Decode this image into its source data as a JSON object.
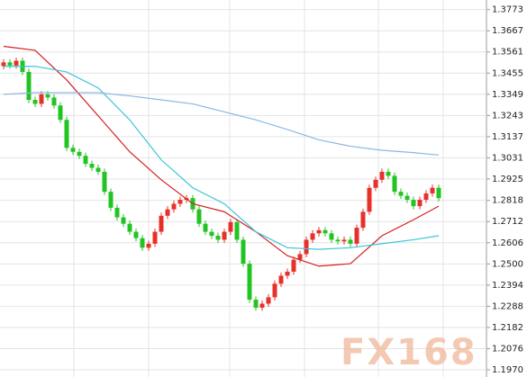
{
  "chart_data": {
    "type": "candlestick",
    "watermark": "FX168",
    "ylim": [
      1.1934,
      1.3821
    ],
    "yticks": [
      1.3773,
      1.3667,
      1.3561,
      1.3455,
      1.3349,
      1.3243,
      1.3137,
      1.3031,
      1.2925,
      1.2818,
      1.2712,
      1.2606,
      {
        "value": 1.25,
        "label": "1.2500"
      },
      1.2394,
      1.2288,
      1.2182,
      1.2076,
      {
        "value": 1.197,
        "label": "1.1970"
      }
    ],
    "grid": true,
    "up_color": "#e8302a",
    "down_color": "#22c422",
    "open": [
      1.349,
      1.3509,
      1.3493,
      1.3517,
      1.3461,
      1.3321,
      1.3301,
      1.3349,
      1.3333,
      1.3293,
      1.3221,
      1.3081,
      1.3061,
      1.3041,
      1.3001,
      1.2981,
      1.2961,
      1.2861,
      1.2781,
      1.2733,
      1.2701,
      1.2661,
      1.2629,
      1.2581,
      1.2601,
      1.2661,
      1.2741,
      1.2773,
      1.2801,
      1.2821,
      1.2829,
      1.2773,
      1.2701,
      1.2661,
      1.2641,
      1.2621,
      1.2661,
      1.2709,
      1.2621,
      1.2501,
      1.2321,
      1.2281,
      1.2301,
      1.2333,
      1.2401,
      1.2441,
      1.2461,
      1.2521,
      1.2549,
      1.2621,
      1.2653,
      1.2669,
      1.2653,
      1.2621,
      1.2613,
      1.2621,
      1.2601,
      1.2681,
      1.2761,
      1.2881,
      1.2921,
      1.2961,
      1.2941,
      1.2861,
      1.2841,
      1.2821,
      1.2789,
      1.2821,
      1.2853,
      1.2881
    ],
    "high": [
      1.3525,
      1.3525,
      1.3533,
      1.3533,
      1.3477,
      1.3337,
      1.3365,
      1.3365,
      1.3349,
      1.3309,
      1.3237,
      1.3097,
      1.3077,
      1.3057,
      1.3017,
      1.2997,
      1.2977,
      1.2877,
      1.2797,
      1.2749,
      1.2717,
      1.2677,
      1.2645,
      1.2617,
      1.2677,
      1.2757,
      1.2789,
      1.2817,
      1.2837,
      1.2845,
      1.2845,
      1.2789,
      1.2717,
      1.2677,
      1.2657,
      1.2677,
      1.2725,
      1.2725,
      1.2637,
      1.2517,
      1.2337,
      1.2317,
      1.2349,
      1.2417,
      1.2457,
      1.2477,
      1.2537,
      1.2565,
      1.2637,
      1.2669,
      1.2685,
      1.2685,
      1.2669,
      1.2637,
      1.2637,
      1.2637,
      1.2697,
      1.2777,
      1.2897,
      1.2937,
      1.2977,
      1.2977,
      1.2957,
      1.2877,
      1.2857,
      1.2837,
      1.2837,
      1.2869,
      1.2897,
      1.2897
    ],
    "low": [
      1.3474,
      1.3477,
      1.3477,
      1.3445,
      1.3305,
      1.3285,
      1.3285,
      1.3317,
      1.3277,
      1.3205,
      1.3065,
      1.3045,
      1.3025,
      1.2985,
      1.2965,
      1.2945,
      1.2845,
      1.2765,
      1.2717,
      1.2685,
      1.2645,
      1.2613,
      1.2565,
      1.2565,
      1.2585,
      1.2645,
      1.2725,
      1.2757,
      1.2785,
      1.2805,
      1.2757,
      1.2685,
      1.2645,
      1.2625,
      1.2605,
      1.2605,
      1.2645,
      1.2605,
      1.2485,
      1.2305,
      1.2265,
      1.2265,
      1.2285,
      1.2317,
      1.2385,
      1.2425,
      1.2445,
      1.2505,
      1.2533,
      1.2605,
      1.2637,
      1.2637,
      1.2605,
      1.2597,
      1.2597,
      1.2585,
      1.2585,
      1.2665,
      1.2745,
      1.2865,
      1.2905,
      1.2925,
      1.2845,
      1.2825,
      1.2805,
      1.2773,
      1.2773,
      1.2805,
      1.2837,
      1.2813
    ],
    "close": [
      1.3509,
      1.3493,
      1.3517,
      1.3461,
      1.3321,
      1.3301,
      1.3349,
      1.3333,
      1.3293,
      1.3221,
      1.3081,
      1.3061,
      1.3041,
      1.3001,
      1.2981,
      1.2961,
      1.2861,
      1.2781,
      1.2733,
      1.2701,
      1.2661,
      1.2629,
      1.2581,
      1.2601,
      1.2661,
      1.2741,
      1.2773,
      1.2801,
      1.2821,
      1.2829,
      1.2773,
      1.2701,
      1.2661,
      1.2641,
      1.2621,
      1.2661,
      1.2709,
      1.2621,
      1.2501,
      1.2321,
      1.2281,
      1.2301,
      1.2333,
      1.2401,
      1.2441,
      1.2461,
      1.2521,
      1.2549,
      1.2621,
      1.2653,
      1.2669,
      1.2653,
      1.2621,
      1.2613,
      1.2621,
      1.2601,
      1.2681,
      1.2761,
      1.2881,
      1.2921,
      1.2961,
      1.2941,
      1.2861,
      1.2841,
      1.2821,
      1.2789,
      1.2821,
      1.2853,
      1.2881,
      1.2829
    ],
    "series": [
      {
        "color": "#d42020",
        "x": [
          0,
          5,
          10,
          15,
          20,
          25,
          30,
          35,
          40,
          45,
          50,
          55,
          60,
          65,
          69
        ],
        "values": [
          1.3589,
          1.3569,
          1.3421,
          1.3241,
          1.3061,
          1.2921,
          1.2801,
          1.2761,
          1.2661,
          1.2541,
          1.2489,
          1.2501,
          1.2641,
          1.2721,
          1.2789
        ]
      },
      {
        "color": "#3cc4dc",
        "x": [
          0,
          5,
          10,
          15,
          20,
          25,
          30,
          35,
          40,
          45,
          50,
          55,
          60,
          65,
          69
        ],
        "values": [
          1.3489,
          1.3489,
          1.3461,
          1.3381,
          1.3221,
          1.3021,
          1.2881,
          1.2801,
          1.2661,
          1.2581,
          1.2573,
          1.2581,
          1.2601,
          1.2621,
          1.2641
        ]
      },
      {
        "color": "#8ab8e0",
        "x": [
          0,
          5,
          10,
          15,
          20,
          25,
          30,
          35,
          40,
          45,
          50,
          55,
          60,
          65,
          69
        ],
        "values": [
          1.3349,
          1.3357,
          1.3357,
          1.3357,
          1.3341,
          1.3321,
          1.3301,
          1.3261,
          1.3221,
          1.3173,
          1.3121,
          1.3089,
          1.3069,
          1.3057,
          1.3045
        ]
      }
    ]
  }
}
